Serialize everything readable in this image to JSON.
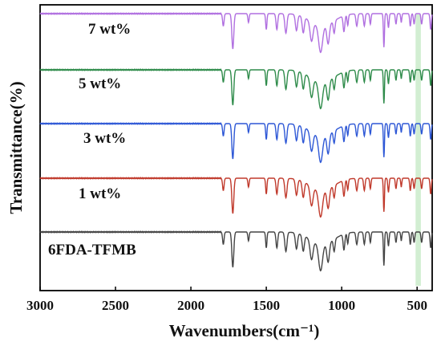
{
  "chart_data": {
    "type": "line",
    "xlabel": "Wavenumbers(cm⁻¹)",
    "ylabel": "Transmittance(%)",
    "xlim": [
      3000,
      400
    ],
    "x_reversed": true,
    "x_ticks": [
      3000,
      2500,
      2000,
      1500,
      1000,
      500
    ],
    "y_ticks_shown": false,
    "grid": false,
    "legend": "none",
    "highlight_band": {
      "from": 510,
      "to": 475,
      "color": "#cdeccd"
    },
    "series": [
      {
        "name": "7 wt%",
        "color": "#b06fe0",
        "offset": 4
      },
      {
        "name": "5 wt%",
        "color": "#2e8b4a",
        "offset": 3
      },
      {
        "name": "3 wt%",
        "color": "#2d57d6",
        "offset": 2
      },
      {
        "name": "1 wt%",
        "color": "#c0392b",
        "offset": 1
      },
      {
        "name": "6FDA-TFMB",
        "color": "#444444",
        "offset": 0
      }
    ]
  }
}
